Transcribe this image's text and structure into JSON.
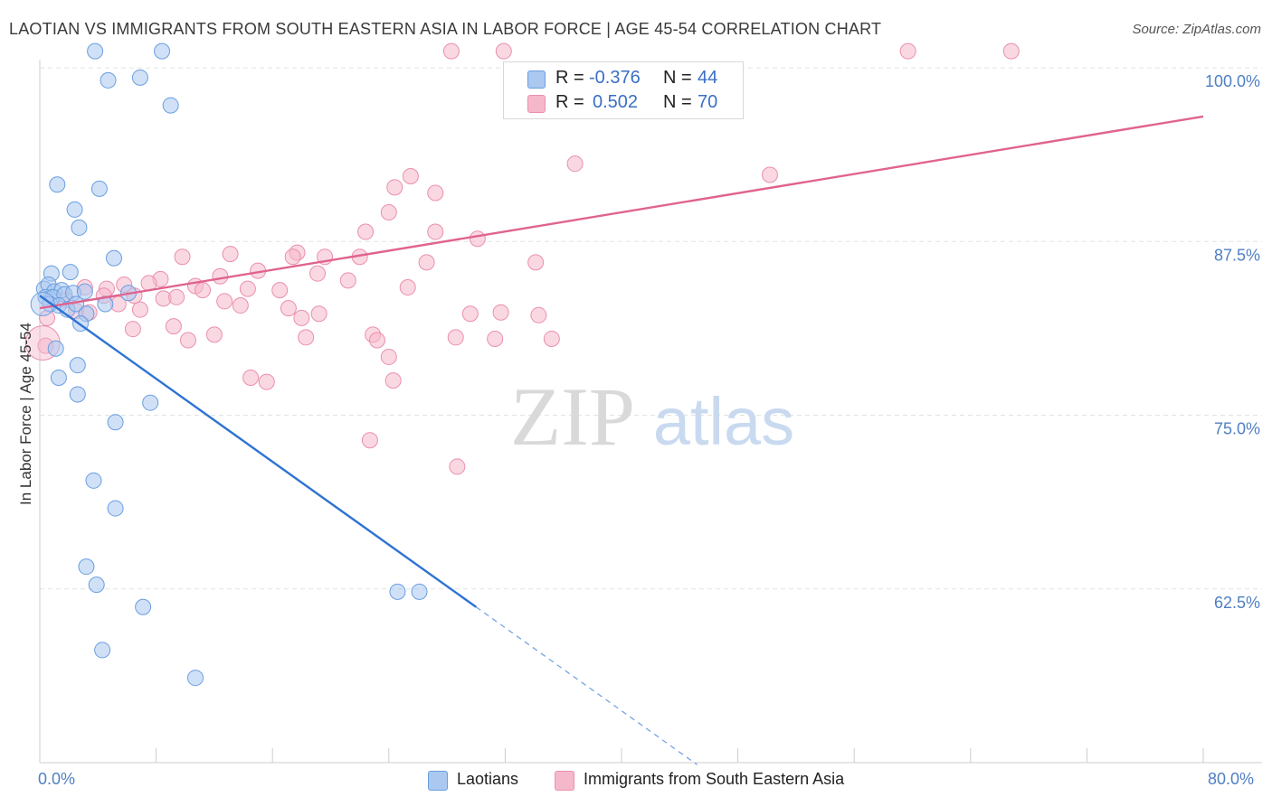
{
  "header": {
    "title": "LAOTIAN VS IMMIGRANTS FROM SOUTH EASTERN ASIA IN LABOR FORCE | AGE 45-54 CORRELATION CHART",
    "source": "Source: ZipAtlas.com"
  },
  "watermark": {
    "zip": "ZIP",
    "atlas": "atlas"
  },
  "colors": {
    "blue_fill": "#aac8f0",
    "blue_stroke": "#6a9ee0",
    "blue_line": "#2e73d3",
    "pink_fill": "#f5b8cb",
    "pink_stroke": "#ea8fae",
    "pink_line": "#e0638f",
    "tick_blue": "#4f7fc4"
  },
  "legend_top": {
    "rows": [
      {
        "r_label": "R =",
        "r_value": "-0.376",
        "n_label": "N =",
        "n_value": "44"
      },
      {
        "r_label": "R =",
        "r_value": "0.502",
        "n_label": "N =",
        "n_value": "70"
      }
    ]
  },
  "legend_bottom": {
    "items": [
      "Laotians",
      "Immigrants from South Eastern Asia"
    ]
  },
  "chart_data": {
    "type": "scatter",
    "title": "LAOTIAN VS IMMIGRANTS FROM SOUTH EASTERN ASIA IN LABOR FORCE | AGE 45-54 CORRELATION CHART",
    "xlabel": "",
    "ylabel": "In Labor Force | Age 45-54",
    "xlim": [
      0,
      80
    ],
    "ylim": [
      50,
      101.5
    ],
    "x_tick_labels": [
      "0.0%",
      "80.0%"
    ],
    "y_ticks": [
      62.5,
      75.0,
      87.5,
      100.0
    ],
    "y_tick_labels": [
      "62.5%",
      "75.0%",
      "87.5%",
      "100.0%"
    ],
    "grid": true,
    "series": [
      {
        "name": "Laotians",
        "r": -0.376,
        "n": 44,
        "trend": {
          "x0": 0,
          "y0": 83.6,
          "x1": 30.0,
          "y1": 61.2,
          "dash_to_x": 45.2
        },
        "points": [
          [
            3.8,
            101.2
          ],
          [
            8.4,
            101.2
          ],
          [
            4.7,
            99.1
          ],
          [
            6.9,
            99.3
          ],
          [
            9.0,
            97.3
          ],
          [
            1.2,
            91.6
          ],
          [
            4.1,
            91.3
          ],
          [
            2.4,
            89.8
          ],
          [
            2.7,
            88.5
          ],
          [
            5.1,
            86.3
          ],
          [
            0.8,
            85.2
          ],
          [
            2.1,
            85.3
          ],
          [
            0.3,
            84.1
          ],
          [
            0.6,
            84.4
          ],
          [
            1.0,
            83.9
          ],
          [
            1.5,
            84.0
          ],
          [
            0.4,
            83.5
          ],
          [
            0.9,
            83.5
          ],
          [
            1.7,
            83.7
          ],
          [
            2.3,
            83.8
          ],
          [
            3.1,
            83.9
          ],
          [
            6.1,
            83.8
          ],
          [
            0.7,
            83.0
          ],
          [
            1.3,
            82.9
          ],
          [
            1.9,
            82.6
          ],
          [
            2.5,
            83.0
          ],
          [
            4.5,
            83.0
          ],
          [
            3.2,
            82.3
          ],
          [
            2.8,
            81.6
          ],
          [
            1.1,
            79.8
          ],
          [
            2.6,
            78.6
          ],
          [
            1.3,
            77.7
          ],
          [
            2.6,
            76.5
          ],
          [
            7.6,
            75.9
          ],
          [
            5.2,
            74.5
          ],
          [
            3.7,
            70.3
          ],
          [
            5.2,
            68.3
          ],
          [
            3.2,
            64.1
          ],
          [
            3.9,
            62.8
          ],
          [
            7.1,
            61.2
          ],
          [
            24.6,
            62.3
          ],
          [
            26.1,
            62.3
          ],
          [
            4.3,
            58.1
          ],
          [
            10.7,
            56.1
          ]
        ]
      },
      {
        "name": "Immigrants from South Eastern Asia",
        "r": 0.502,
        "n": 70,
        "trend": {
          "x0": 0,
          "y0": 82.7,
          "x1": 80,
          "y1": 96.5
        },
        "points": [
          [
            28.3,
            101.2
          ],
          [
            31.9,
            101.2
          ],
          [
            59.7,
            101.2
          ],
          [
            66.8,
            101.2
          ],
          [
            36.8,
            93.1
          ],
          [
            50.2,
            92.3
          ],
          [
            25.5,
            92.2
          ],
          [
            24.4,
            91.4
          ],
          [
            27.2,
            91.0
          ],
          [
            24.0,
            89.6
          ],
          [
            22.4,
            88.2
          ],
          [
            27.2,
            88.2
          ],
          [
            30.1,
            87.7
          ],
          [
            13.1,
            86.6
          ],
          [
            17.7,
            86.7
          ],
          [
            9.8,
            86.4
          ],
          [
            17.4,
            86.4
          ],
          [
            19.6,
            86.4
          ],
          [
            22.0,
            86.4
          ],
          [
            34.1,
            86.0
          ],
          [
            26.6,
            86.0
          ],
          [
            15.0,
            85.4
          ],
          [
            19.1,
            85.2
          ],
          [
            12.4,
            85.0
          ],
          [
            8.3,
            84.8
          ],
          [
            21.2,
            84.7
          ],
          [
            5.8,
            84.4
          ],
          [
            7.5,
            84.5
          ],
          [
            10.7,
            84.3
          ],
          [
            3.1,
            84.2
          ],
          [
            4.6,
            84.1
          ],
          [
            11.2,
            84.0
          ],
          [
            14.3,
            84.1
          ],
          [
            16.5,
            84.0
          ],
          [
            25.3,
            84.2
          ],
          [
            4.4,
            83.6
          ],
          [
            6.5,
            83.6
          ],
          [
            8.5,
            83.4
          ],
          [
            9.4,
            83.5
          ],
          [
            12.7,
            83.2
          ],
          [
            5.4,
            83.0
          ],
          [
            1.8,
            83.3
          ],
          [
            13.8,
            82.9
          ],
          [
            17.1,
            82.7
          ],
          [
            6.9,
            82.6
          ],
          [
            19.2,
            82.3
          ],
          [
            2.5,
            82.5
          ],
          [
            3.4,
            82.4
          ],
          [
            29.6,
            82.3
          ],
          [
            31.7,
            82.4
          ],
          [
            34.3,
            82.2
          ],
          [
            18.0,
            82.0
          ],
          [
            9.2,
            81.4
          ],
          [
            6.4,
            81.2
          ],
          [
            22.9,
            80.8
          ],
          [
            35.2,
            80.5
          ],
          [
            12.0,
            80.8
          ],
          [
            18.3,
            80.6
          ],
          [
            28.6,
            80.6
          ],
          [
            31.3,
            80.5
          ],
          [
            10.2,
            80.4
          ],
          [
            23.2,
            80.4
          ],
          [
            0.4,
            80.0
          ],
          [
            24.0,
            79.2
          ],
          [
            14.5,
            77.7
          ],
          [
            15.6,
            77.4
          ],
          [
            24.3,
            77.5
          ],
          [
            22.7,
            73.2
          ],
          [
            28.7,
            71.3
          ],
          [
            0.5,
            82.0
          ]
        ]
      }
    ]
  }
}
